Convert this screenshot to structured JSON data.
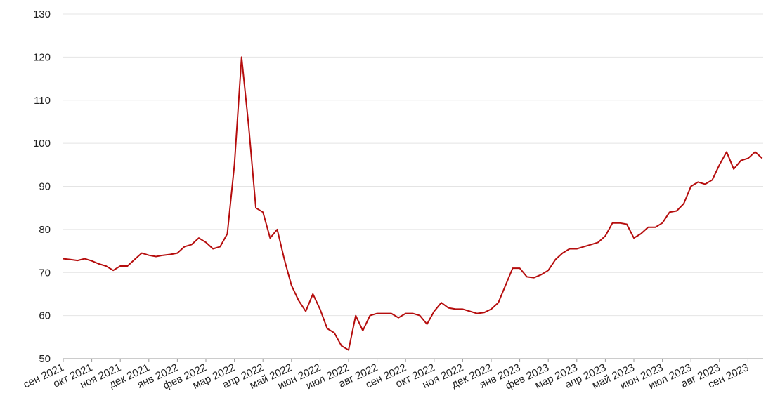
{
  "chart_data": {
    "type": "line",
    "categories": [
      "сен 2021",
      null,
      null,
      null,
      "окт 2021",
      null,
      null,
      null,
      "ноя 2021",
      null,
      null,
      null,
      "дек 2021",
      null,
      null,
      null,
      "янв 2022",
      null,
      null,
      null,
      "фев 2022",
      null,
      null,
      null,
      "мар 2022",
      null,
      null,
      null,
      "апр 2022",
      null,
      null,
      null,
      "май 2022",
      null,
      null,
      null,
      "июн 2022",
      null,
      null,
      null,
      "июл 2022",
      null,
      null,
      null,
      "авг 2022",
      null,
      null,
      null,
      "сен 2022",
      null,
      null,
      null,
      "окт 2022",
      null,
      null,
      null,
      "ноя 2022",
      null,
      null,
      null,
      "дек 2022",
      null,
      null,
      null,
      "янв 2023",
      null,
      null,
      null,
      "фев 2023",
      null,
      null,
      null,
      "мар 2023",
      null,
      null,
      null,
      "апр 2023",
      null,
      null,
      null,
      "май 2023",
      null,
      null,
      null,
      "июн 2023",
      null,
      null,
      null,
      "июл 2023",
      null,
      null,
      null,
      "авг 2023",
      null,
      null,
      null,
      "сен 2023",
      null,
      null
    ],
    "series": [
      {
        "color": "#b50d0d",
        "values": [
          73.2,
          73.0,
          72.8,
          73.2,
          72.7,
          72.0,
          71.5,
          70.5,
          71.5,
          71.5,
          73,
          74.5,
          74,
          73.7,
          74,
          74.2,
          74.5,
          76,
          76.5,
          78,
          77,
          75.5,
          76,
          79,
          95,
          120,
          104,
          85,
          84,
          78,
          80,
          73,
          67,
          63.5,
          61,
          65,
          61.5,
          57,
          56,
          53,
          52,
          60,
          56.5,
          60,
          60.5,
          60.5,
          60.5,
          59.5,
          60.5,
          60.5,
          60,
          58,
          61,
          63,
          61.8,
          61.5,
          61.5,
          61,
          60.5,
          60.7,
          61.5,
          63,
          67,
          71,
          71,
          69,
          68.8,
          69.5,
          70.5,
          73,
          74.5,
          75.5,
          75.5,
          76,
          76.5,
          77,
          78.5,
          81.5,
          81.5,
          81.2,
          78,
          79,
          80.5,
          80.5,
          81.5,
          84,
          84.3,
          86,
          90,
          91,
          90.5,
          91.5,
          95,
          98,
          94,
          96,
          96.5,
          98,
          96.5
        ]
      }
    ],
    "ylim": [
      50,
      130
    ],
    "yticks": [
      50,
      60,
      70,
      80,
      90,
      100,
      110,
      120,
      130
    ],
    "grid": true
  }
}
